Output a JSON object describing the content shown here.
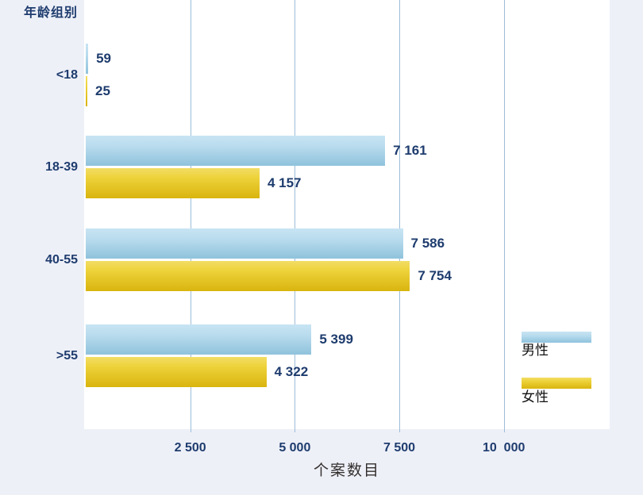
{
  "chart_data": {
    "type": "bar",
    "orientation": "horizontal",
    "title": "年龄组别",
    "xlabel": "个案数目",
    "categories": [
      "<18",
      "18-39",
      "40-55",
      ">55"
    ],
    "series": [
      {
        "name": "男性",
        "values": [
          59,
          7161,
          7586,
          5399
        ],
        "display_labels": [
          "59",
          "7 161",
          "7 586",
          "5 399"
        ],
        "color_top": "#c8e4f3",
        "color_bottom": "#8fc2dc"
      },
      {
        "name": "女性",
        "values": [
          25,
          4157,
          7754,
          4322
        ],
        "display_labels": [
          "25",
          "4 157",
          "7 754",
          "4 322"
        ],
        "color_top": "#f2dd66",
        "color_bottom": "#d9b40e"
      }
    ],
    "x_ticks": [
      {
        "value": 2500,
        "label": "2 500"
      },
      {
        "value": 5000,
        "label": "5 000"
      },
      {
        "value": 7500,
        "label": "7 500"
      },
      {
        "value": 10000,
        "label": "10  000"
      }
    ],
    "xlim": [
      0,
      12500
    ],
    "grid": true,
    "legend_position": "bottom-right"
  },
  "colors": {
    "background": "#eef0f8",
    "plot_background": "#ffffff",
    "gridline": "#9dbdd8",
    "label_text": "#1e3c6e",
    "axis_title_text": "#332f2d",
    "legend_text": "#111111"
  }
}
